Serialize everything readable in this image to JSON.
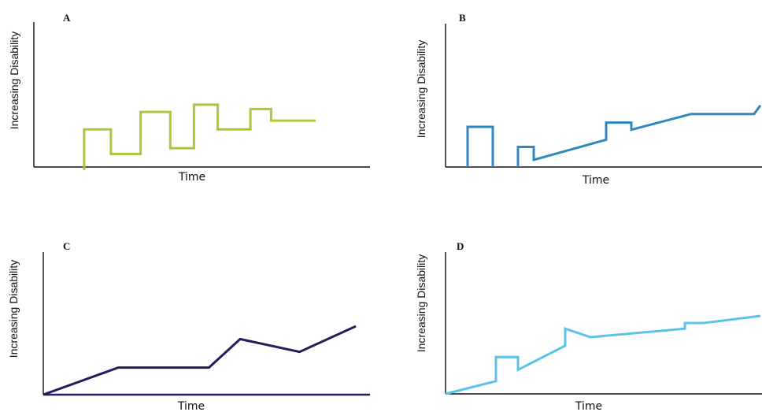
{
  "chart_data": [
    {
      "type": "line",
      "title": "A",
      "xlabel": "Time",
      "ylabel": "Increasing Disability",
      "color": "#a8c93a",
      "xlim": [
        0,
        100
      ],
      "ylim": [
        0,
        100
      ],
      "grid": false,
      "x": [
        9,
        9,
        18,
        18,
        28,
        28,
        38,
        38,
        46,
        46,
        54,
        54,
        65,
        65,
        72,
        72,
        87
      ],
      "y": [
        -2,
        26,
        26,
        9,
        9,
        38,
        38,
        13,
        13,
        43,
        43,
        26,
        26,
        40,
        40,
        32,
        32
      ]
    },
    {
      "type": "line",
      "title": "B",
      "xlabel": "Time",
      "ylabel": "Increasing Disability",
      "color": "#2e88bd",
      "xlim": [
        0,
        100
      ],
      "ylim": [
        0,
        100
      ],
      "grid": false,
      "x": [
        7,
        7,
        15,
        15
      ],
      "y": [
        0,
        28,
        28,
        0
      ],
      "segment2_x": [
        23,
        23,
        28,
        28,
        51,
        51,
        59,
        59,
        78,
        98,
        100
      ],
      "segment2_y": [
        0,
        14,
        14,
        5,
        19,
        31,
        31,
        26,
        37,
        37,
        43
      ]
    },
    {
      "type": "line",
      "title": "C",
      "xlabel": "Time",
      "ylabel": "Increasing Disability",
      "color": "#1f1f5e",
      "xlim": [
        0,
        100
      ],
      "ylim": [
        0,
        100
      ],
      "grid": false,
      "x": [
        0,
        24,
        53,
        63,
        82,
        100
      ],
      "y": [
        0,
        19,
        19,
        39,
        30,
        48
      ]
    },
    {
      "type": "line",
      "title": "D",
      "xlabel": "Time",
      "ylabel": "Increasing Disability",
      "color": "#5cc3e6",
      "xlim": [
        0,
        100
      ],
      "ylim": [
        0,
        100
      ],
      "grid": false,
      "x": [
        0,
        16,
        16,
        23,
        23,
        38,
        38,
        46,
        76,
        76,
        82,
        100
      ],
      "y": [
        0,
        9,
        26,
        26,
        17,
        34,
        46,
        40,
        46,
        50,
        50,
        55
      ]
    }
  ]
}
